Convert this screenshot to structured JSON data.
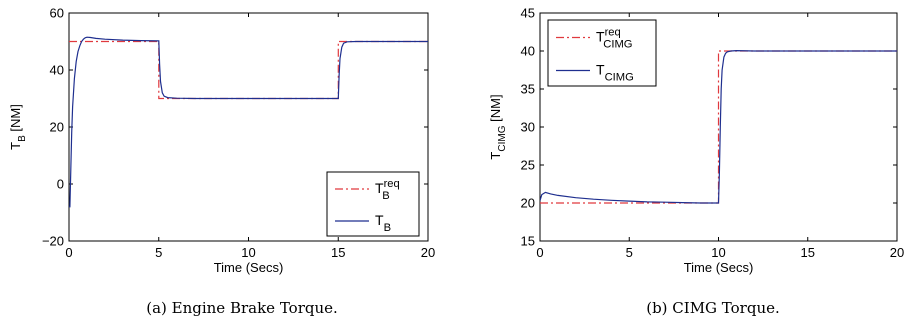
{
  "chart_data": [
    {
      "type": "line",
      "caption": "(a)  Engine Brake Torque.",
      "xlabel": "Time (Secs)",
      "ylabel": {
        "base": "T",
        "sub": "B",
        "unit": "[NM]"
      },
      "xlim": [
        0,
        20
      ],
      "ylim": [
        -20,
        60
      ],
      "xticks": [
        "0",
        "5",
        "10",
        "15",
        "20"
      ],
      "yticks": [
        "−20",
        "0",
        "20",
        "40",
        "60"
      ],
      "grid": false,
      "legend_position": "bottom-right",
      "series": [
        {
          "legend": {
            "base": "T",
            "sub": "B",
            "sup": "req"
          },
          "style": "dash-dot",
          "color": "#e0393e",
          "x": [
            0,
            0.3,
            0.3,
            5.0,
            5.0,
            15.0,
            15.0,
            20
          ],
          "y": [
            50,
            50,
            50,
            50,
            30,
            30,
            50,
            50
          ]
        },
        {
          "legend": {
            "base": "T",
            "sub": "B"
          },
          "style": "solid",
          "color": "#1f2f8f",
          "x": [
            0,
            0.05,
            0.1,
            0.15,
            0.2,
            0.3,
            0.4,
            0.5,
            0.6,
            0.7,
            0.8,
            0.9,
            1.0,
            1.2,
            1.5,
            2.0,
            3.0,
            4.0,
            5.0,
            5.05,
            5.1,
            5.2,
            5.3,
            5.5,
            6.0,
            7.0,
            15.0,
            15.05,
            15.1,
            15.2,
            15.3,
            15.5,
            16.0,
            20.0
          ],
          "y": [
            -8,
            -8,
            5,
            18,
            27,
            37,
            43,
            46.5,
            48.5,
            50,
            50.8,
            51.3,
            51.5,
            51.4,
            51.1,
            50.8,
            50.5,
            50.3,
            50.2,
            42,
            36,
            32,
            30.8,
            30.3,
            30.1,
            30,
            30,
            38,
            44,
            48,
            49.4,
            49.9,
            50,
            50
          ]
        }
      ]
    },
    {
      "type": "line",
      "caption": "(b)  CIMG Torque.",
      "xlabel": "Time (Secs)",
      "ylabel": {
        "base": "T",
        "sub": "CIMG",
        "unit": "[NM]"
      },
      "xlim": [
        0,
        20
      ],
      "ylim": [
        15,
        45
      ],
      "xticks": [
        "0",
        "5",
        "10",
        "15",
        "20"
      ],
      "yticks": [
        "15",
        "20",
        "25",
        "30",
        "35",
        "40",
        "45"
      ],
      "grid": false,
      "legend_position": "top-left",
      "series": [
        {
          "legend": {
            "base": "T",
            "sub": "CIMG",
            "sup": "req"
          },
          "style": "dash-dot",
          "color": "#e0393e",
          "x": [
            0,
            10,
            10,
            20
          ],
          "y": [
            20,
            20,
            40,
            40
          ]
        },
        {
          "legend": {
            "base": "T",
            "sub": "CIMG"
          },
          "style": "solid",
          "color": "#1f2f8f",
          "x": [
            0,
            0.1,
            0.3,
            0.6,
            1.0,
            2.0,
            3.0,
            4.0,
            5.0,
            6.0,
            7.0,
            8.0,
            9.0,
            9.9,
            10.0,
            10.05,
            10.1,
            10.15,
            10.2,
            10.3,
            10.4,
            10.5,
            10.7,
            11.0,
            12.0,
            20.0
          ],
          "y": [
            20.3,
            21.1,
            21.4,
            21.2,
            21.0,
            20.7,
            20.5,
            20.35,
            20.25,
            20.15,
            20.1,
            20.05,
            20.0,
            20.0,
            20.0,
            24,
            30,
            35,
            37.5,
            39.2,
            39.7,
            39.9,
            40.0,
            40.05,
            40.0,
            40.0
          ]
        }
      ]
    }
  ]
}
